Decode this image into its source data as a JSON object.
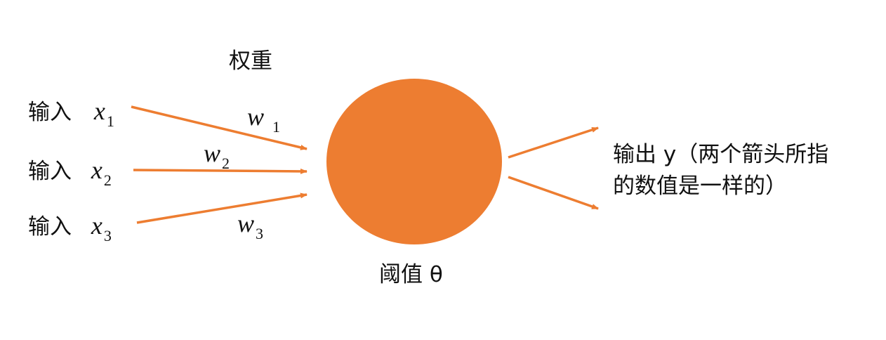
{
  "diagram": {
    "weights_title": "权重",
    "inputs": [
      {
        "label": "输入",
        "var": "x",
        "sub": "1"
      },
      {
        "label": "输入",
        "var": "x",
        "sub": "2"
      },
      {
        "label": "输入",
        "var": "x",
        "sub": "3"
      }
    ],
    "weights": [
      {
        "var": "w",
        "sub": "1"
      },
      {
        "var": "w",
        "sub": "2"
      },
      {
        "var": "w",
        "sub": "3"
      }
    ],
    "neuron_label": "阈值 θ",
    "output_line1": "输出 y（两个箭头所指",
    "output_line2": "的数值是一样的）",
    "colors": {
      "neuron": "#ED7D31",
      "arrow": "#ED7D31",
      "text": "#111111"
    }
  }
}
